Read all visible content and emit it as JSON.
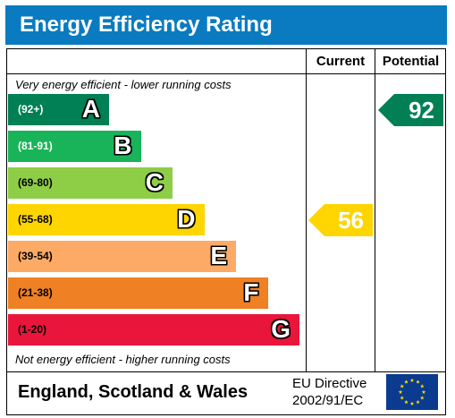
{
  "title": "Energy Efficiency Rating",
  "columns": {
    "current": "Current",
    "potential": "Potential"
  },
  "top_note": "Very energy efficient - lower running costs",
  "bottom_note": "Not energy efficient - higher running costs",
  "footer": {
    "region": "England, Scotland & Wales",
    "directive_line1": "EU Directive",
    "directive_line2": "2002/91/EC",
    "flag_icon": "eu-flag-icon"
  },
  "chart_data": {
    "type": "bar",
    "categories": [
      "A",
      "B",
      "C",
      "D",
      "E",
      "F",
      "G"
    ],
    "bands": [
      {
        "letter": "A",
        "range": "(92+)",
        "color": "#008054",
        "text_color": "#ffffff"
      },
      {
        "letter": "B",
        "range": "(81-91)",
        "color": "#19b459",
        "text_color": "#ffffff"
      },
      {
        "letter": "C",
        "range": "(69-80)",
        "color": "#8dce46",
        "text_color": "#000000"
      },
      {
        "letter": "D",
        "range": "(55-68)",
        "color": "#ffd500",
        "text_color": "#000000"
      },
      {
        "letter": "E",
        "range": "(39-54)",
        "color": "#fcaa65",
        "text_color": "#000000"
      },
      {
        "letter": "F",
        "range": "(21-38)",
        "color": "#ef8023",
        "text_color": "#000000"
      },
      {
        "letter": "G",
        "range": "(1-20)",
        "color": "#e9153b",
        "text_color": "#000000"
      }
    ],
    "current": {
      "value": 56,
      "band": "D",
      "color": "#ffd500"
    },
    "potential": {
      "value": 92,
      "band": "A",
      "color": "#008054"
    }
  }
}
